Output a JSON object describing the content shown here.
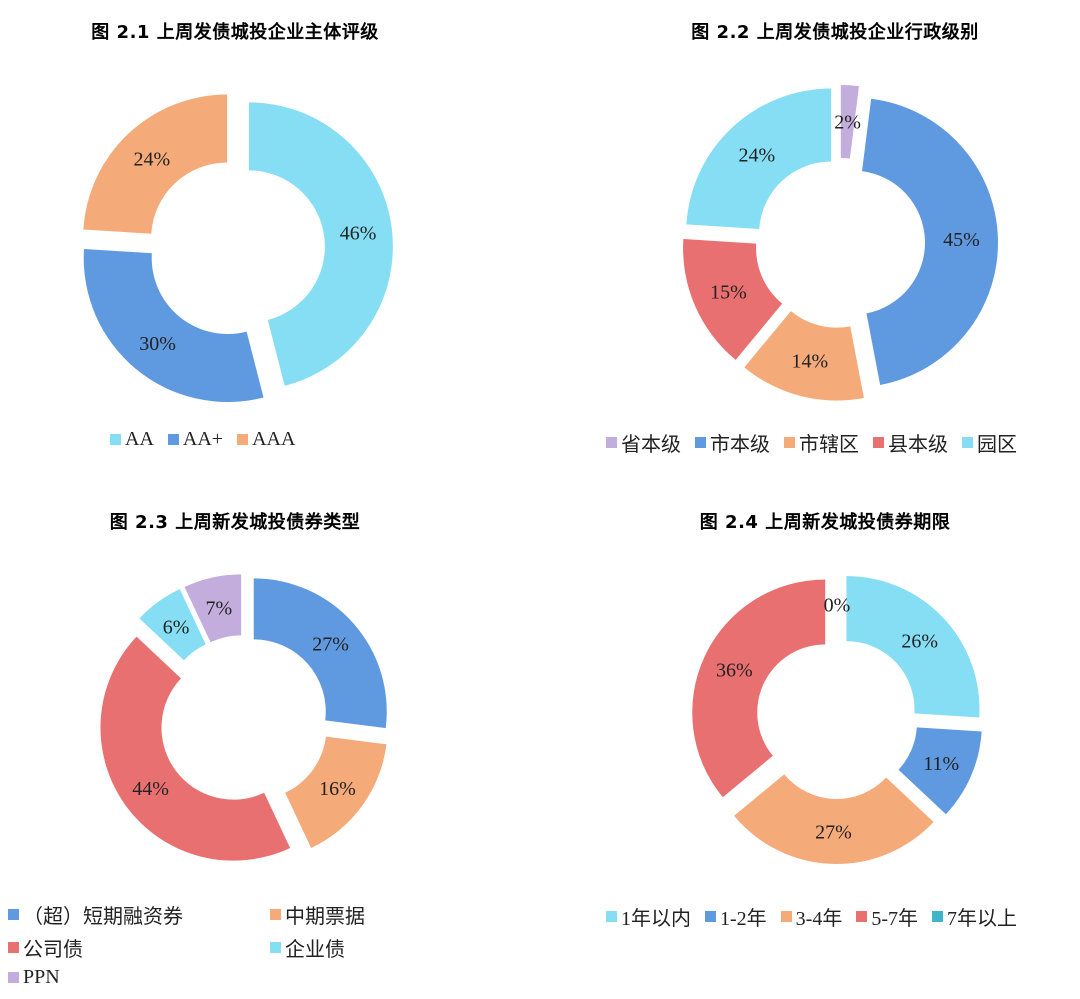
{
  "charts": {
    "c1": {
      "title": "图 2.1  上周发债城投企业主体评级",
      "chart_data": {
        "type": "pie",
        "categories": [
          "AA",
          "AA+",
          "AAA"
        ],
        "values": [
          46,
          30,
          24
        ],
        "labels": [
          "46%",
          "30%",
          "24%"
        ],
        "colors": [
          "#85DEF3",
          "#5F9AE0",
          "#F5AA7A"
        ],
        "legend_order": [
          0,
          1,
          2
        ]
      }
    },
    "c2": {
      "title": "图 2.2  上周发债城投企业行政级别",
      "chart_data": {
        "type": "pie",
        "categories": [
          "省本级",
          "市本级",
          "市辖区",
          "县本级",
          "园区"
        ],
        "values": [
          2,
          45,
          14,
          15,
          24
        ],
        "labels": [
          "2%",
          "45%",
          "14%",
          "15%",
          "24%"
        ],
        "colors": [
          "#C3ADDC",
          "#5F9AE0",
          "#F5AA7A",
          "#E97070",
          "#85DEF3"
        ],
        "legend_order": [
          0,
          1,
          2,
          3,
          4
        ]
      }
    },
    "c3": {
      "title": "图 2.3  上周新发城投债券类型",
      "chart_data": {
        "type": "pie",
        "categories": [
          "（超）短期融资券",
          "中期票据",
          "公司债",
          "企业债",
          "PPN"
        ],
        "values": [
          27,
          16,
          44,
          6,
          7
        ],
        "labels": [
          "27%",
          "16%",
          "44%",
          "6%",
          "7%"
        ],
        "colors": [
          "#5F9AE0",
          "#F5AA7A",
          "#E97070",
          "#85DEF3",
          "#C3ADDC"
        ],
        "legend_order": [
          0,
          1,
          2,
          3,
          4
        ]
      }
    },
    "c4": {
      "title": "图 2.4  上周新发城投债券期限",
      "chart_data": {
        "type": "pie",
        "categories": [
          "1年以内",
          "1-2年",
          "3-4年",
          "5-7年",
          "7年以上"
        ],
        "values": [
          26,
          11,
          27,
          36,
          0
        ],
        "labels": [
          "26%",
          "11%",
          "27%",
          "36%",
          "0%"
        ],
        "colors": [
          "#85DEF3",
          "#5F9AE0",
          "#F5AA7A",
          "#E97070",
          "#3FB6C8"
        ],
        "legend_order": [
          0,
          1,
          2,
          3,
          4
        ]
      }
    }
  }
}
